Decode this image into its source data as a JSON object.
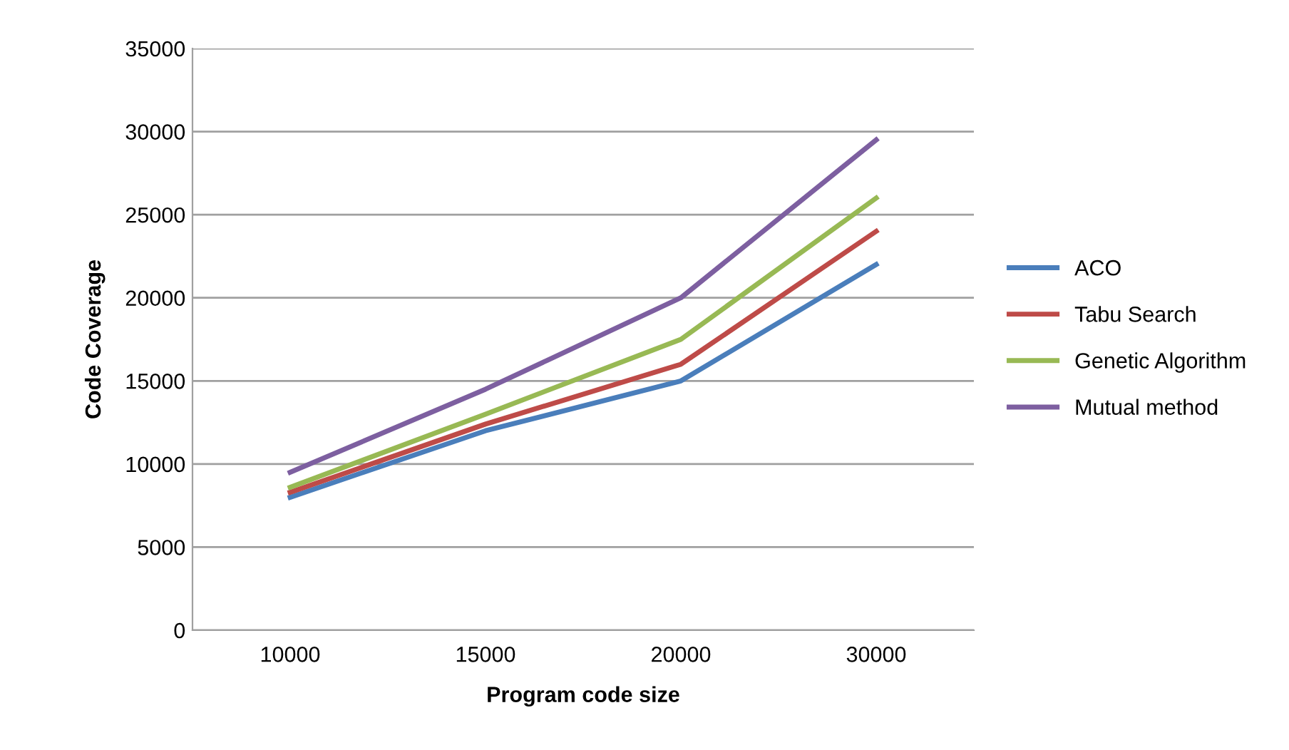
{
  "chart_data": {
    "type": "line",
    "xlabel": "Program code size",
    "ylabel": "Code Coverage",
    "categories": [
      "10000",
      "15000",
      "20000",
      "30000"
    ],
    "series": [
      {
        "name": "ACO",
        "color": "#4a7ebb",
        "values": [
          8000,
          12000,
          15000,
          22000
        ]
      },
      {
        "name": "Tabu Search",
        "color": "#be4b48",
        "values": [
          8300,
          12400,
          16000,
          24000
        ]
      },
      {
        "name": "Genetic Algorithm",
        "color": "#98b954",
        "values": [
          8600,
          13000,
          17500,
          26000
        ]
      },
      {
        "name": "Mutual method",
        "color": "#7d5fa0",
        "values": [
          9500,
          14500,
          20000,
          29500
        ]
      }
    ],
    "ylim": [
      0,
      35000
    ],
    "yticks": [
      0,
      5000,
      10000,
      15000,
      20000,
      25000,
      30000,
      35000
    ],
    "grid": "y",
    "legend": "right",
    "marker": "none",
    "line_style": "solid"
  }
}
